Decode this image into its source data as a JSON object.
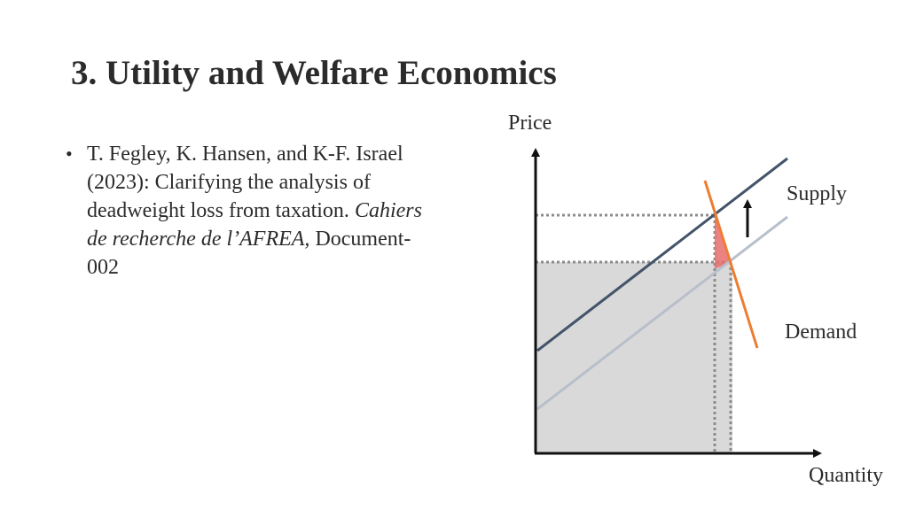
{
  "slide": {
    "title": "3. Utility and Welfare Economics"
  },
  "bullet": {
    "marker": "•",
    "authors_year": "T. Fegley, K. Hansen, and K-F. Israel (2023): Clarifying the analysis of deadweight loss from taxation.",
    "journal": "Cahiers de recherche de l’AFREA,",
    "document": "Document-002"
  },
  "diagram": {
    "y_axis_label": "Price",
    "x_axis_label": "Quantity",
    "supply_label": "Supply",
    "demand_label": "Demand",
    "colors": {
      "axis": "#111111",
      "supply_after_tax": "#44546a",
      "supply_before_tax": "#b8bfcc",
      "demand": "#ed7d31",
      "deadweight_loss": "#e86c6c",
      "tax_revenue_area": "#d9d9d9",
      "guides": "#8c8c8c"
    }
  }
}
